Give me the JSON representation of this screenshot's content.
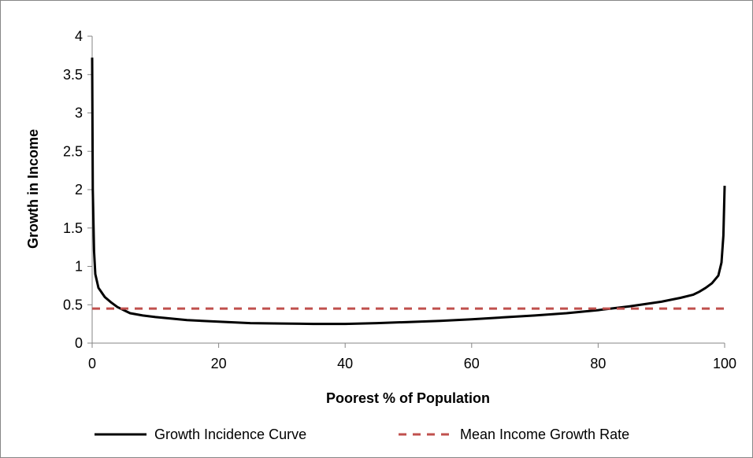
{
  "chart_data": {
    "type": "line",
    "title": "",
    "xlabel": "Poorest % of Population",
    "ylabel": "Growth in Income",
    "xlim": [
      0,
      100
    ],
    "ylim": [
      0,
      4
    ],
    "xticks": [
      0,
      20,
      40,
      60,
      80,
      100
    ],
    "yticks": [
      0,
      0.5,
      1,
      1.5,
      2,
      2.5,
      3,
      3.5,
      4
    ],
    "x_tick_labels": [
      "0",
      "20",
      "40",
      "60",
      "80",
      "100"
    ],
    "y_tick_labels": [
      "0",
      "0.5",
      "1",
      "1.5",
      "2",
      "2.5",
      "3",
      "3.5",
      "4"
    ],
    "grid": false,
    "legend_position": "bottom",
    "series": [
      {
        "name": "Growth Incidence Curve",
        "color": "#000000",
        "style": "solid",
        "x": [
          0,
          0.1,
          0.3,
          0.5,
          1,
          2,
          3,
          4,
          5,
          6,
          8,
          10,
          15,
          20,
          25,
          30,
          35,
          40,
          45,
          50,
          55,
          60,
          65,
          70,
          75,
          80,
          85,
          90,
          93,
          95,
          96,
          97,
          98,
          99,
          99.5,
          99.8,
          100
        ],
        "y": [
          3.72,
          2.0,
          1.2,
          0.9,
          0.72,
          0.6,
          0.53,
          0.47,
          0.43,
          0.39,
          0.36,
          0.34,
          0.3,
          0.28,
          0.26,
          0.255,
          0.25,
          0.25,
          0.26,
          0.275,
          0.29,
          0.31,
          0.335,
          0.36,
          0.39,
          0.43,
          0.48,
          0.54,
          0.59,
          0.63,
          0.67,
          0.72,
          0.78,
          0.88,
          1.05,
          1.4,
          2.05
        ]
      },
      {
        "name": "Mean Income Growth Rate",
        "color": "#C0504D",
        "style": "dashed",
        "x": [
          0,
          100
        ],
        "y": [
          0.45,
          0.45
        ]
      }
    ]
  }
}
